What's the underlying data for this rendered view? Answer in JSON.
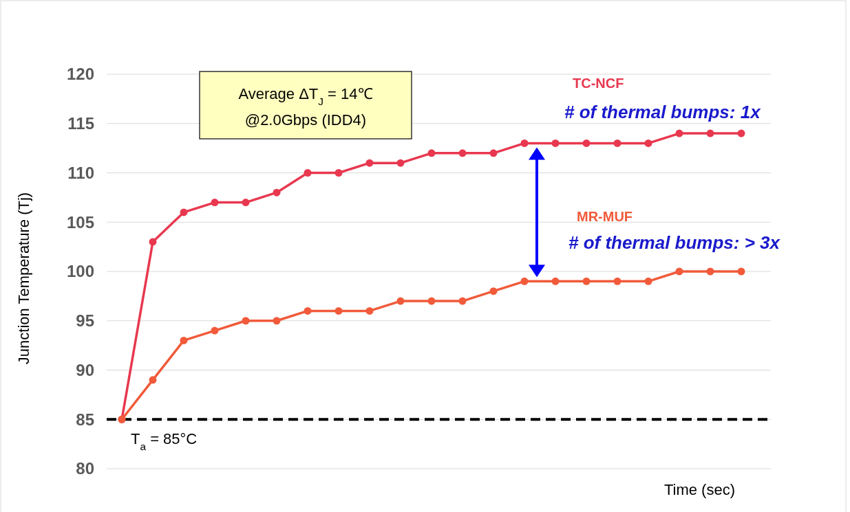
{
  "chart_data": {
    "type": "line",
    "xlabel": "Time (sec)",
    "ylabel": "Junction Temperature (Tj)",
    "categories": [
      null,
      null,
      null,
      null,
      null,
      null,
      null,
      null,
      null,
      null,
      null,
      null,
      null,
      null,
      null,
      null,
      null,
      null,
      null,
      null,
      null
    ],
    "series": [
      {
        "name": "TC-NCF",
        "color": "#e8384f",
        "values": [
          85,
          103,
          106,
          107,
          107,
          108,
          110,
          110,
          111,
          111,
          112,
          112,
          112,
          113,
          113,
          113,
          113,
          113,
          114,
          114,
          114
        ]
      },
      {
        "name": "MR-MUF",
        "color": "#f15a3a",
        "values": [
          85,
          89,
          93,
          94,
          95,
          95,
          96,
          96,
          96,
          97,
          97,
          97,
          98,
          99,
          99,
          99,
          99,
          99,
          100,
          100,
          100
        ]
      }
    ],
    "ylim": [
      80,
      120
    ],
    "yticks": [
      80,
      85,
      90,
      95,
      100,
      105,
      110,
      115,
      120
    ],
    "grid": "y",
    "marker": "circle",
    "line_style": "solid",
    "ref_lines": [
      {
        "axis": "y",
        "value": 85,
        "label": "T$_{a}$ = 85°C",
        "color": "#000000",
        "line_style": "dashed"
      }
    ],
    "annotations": [
      "Average ΔT$_{J}$ = 14℃",
      "@2.0Gbps (IDD4)",
      "# of thermal bumps: 1x",
      "# of thermal bumps: > 3x"
    ]
  }
}
